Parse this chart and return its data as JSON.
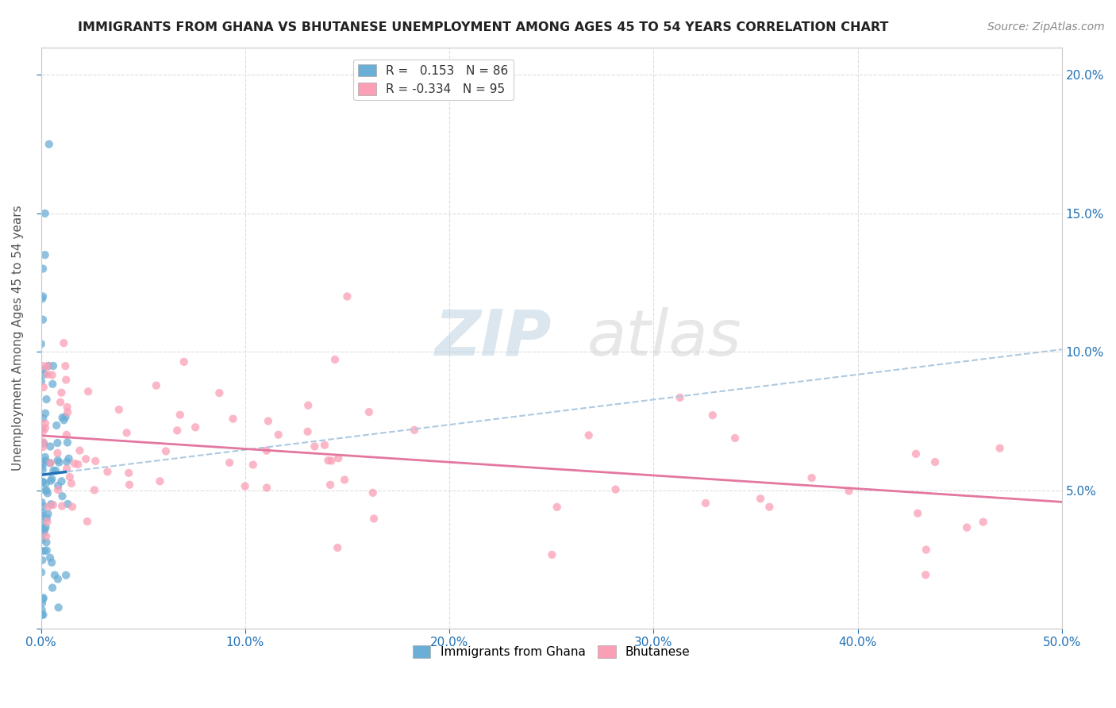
{
  "title": "IMMIGRANTS FROM GHANA VS BHUTANESE UNEMPLOYMENT AMONG AGES 45 TO 54 YEARS CORRELATION CHART",
  "source": "Source: ZipAtlas.com",
  "ylabel": "Unemployment Among Ages 45 to 54 years",
  "xlim": [
    0.0,
    0.5
  ],
  "ylim": [
    0.0,
    0.21
  ],
  "ghana_color": "#6baed6",
  "bhutanese_color": "#fa9fb5",
  "ghana_line_color": "#2171b5",
  "bhutan_line_color": "#e377a0",
  "ghana_dash_color": "#aec9e0",
  "ghana_R": 0.153,
  "ghana_N": 86,
  "bhutan_R": -0.334,
  "bhutan_N": 95,
  "watermark_zip": "ZIP",
  "watermark_atlas": "atlas",
  "background_color": "#ffffff",
  "grid_color": "#dddddd"
}
